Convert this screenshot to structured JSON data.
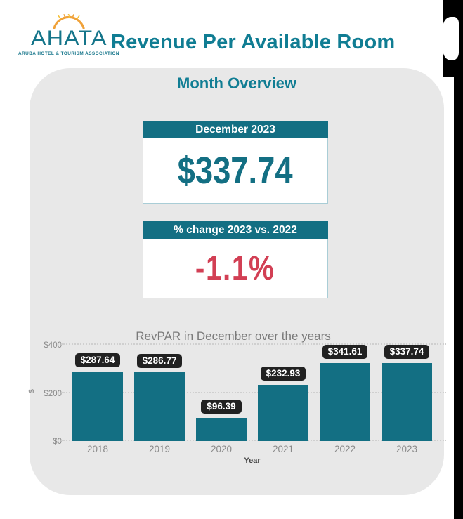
{
  "header": {
    "logo": {
      "text": "AHATA",
      "subtext": "ARUBA HOTEL & TOURISM ASSOCIATION"
    },
    "title": "Revenue Per Available Room"
  },
  "card": {
    "title": "Month Overview",
    "kpi_boxes": [
      {
        "header": "December 2023",
        "value": "$337.74"
      },
      {
        "header": "% change 2023 vs. 2022",
        "value": "-1.1%"
      }
    ]
  },
  "chart_data": {
    "type": "bar",
    "title": "RevPAR in December over the years",
    "xlabel": "Year",
    "ylabel": "$",
    "categories": [
      "2018",
      "2019",
      "2020",
      "2021",
      "2022",
      "2023"
    ],
    "values": [
      287.64,
      286.77,
      96.39,
      232.93,
      341.61,
      337.74
    ],
    "data_labels": [
      "$287.64",
      "$286.77",
      "$96.39",
      "$232.93",
      "$341.61",
      "$337.74"
    ],
    "y_ticks": [
      {
        "label": "$0",
        "value": 0
      },
      {
        "label": "$200",
        "value": 200
      },
      {
        "label": "$400",
        "value": 400
      }
    ],
    "ylim": [
      0,
      400
    ],
    "grid": "horizontal-dotted",
    "legend": "none",
    "bar_color": "#136f83",
    "label_bg": "#212121"
  },
  "colors": {
    "teal": "#136f83",
    "title_teal": "#107d93",
    "red": "#d23f54",
    "card_bg": "#e8e8e8",
    "axis_text": "#8a8a8a",
    "chart_title_text": "#7a7a7a",
    "sun_orange": "#f0a23a"
  }
}
